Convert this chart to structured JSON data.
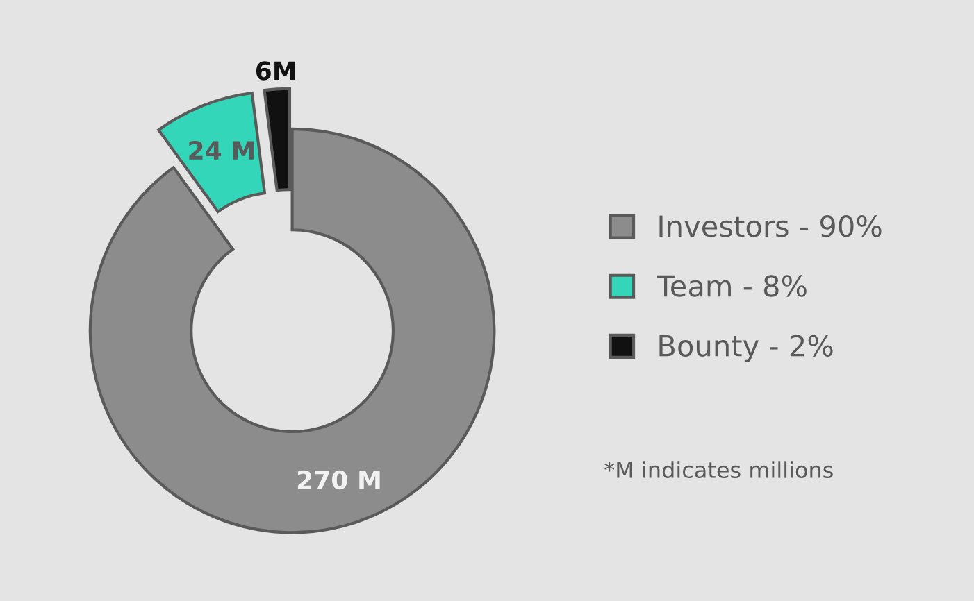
{
  "chart_data": {
    "type": "donut",
    "categories": [
      "Investors - 90%",
      "Team - 8%",
      "Bounty - 2%"
    ],
    "values": [
      270,
      24,
      6
    ],
    "colors": [
      "#8c8c8c",
      "#33d6b8",
      "#111111"
    ],
    "value_labels": [
      "270 M",
      "24 M",
      "6M"
    ],
    "legend": "right",
    "annotations": [
      "*M indicates millions"
    ]
  }
}
